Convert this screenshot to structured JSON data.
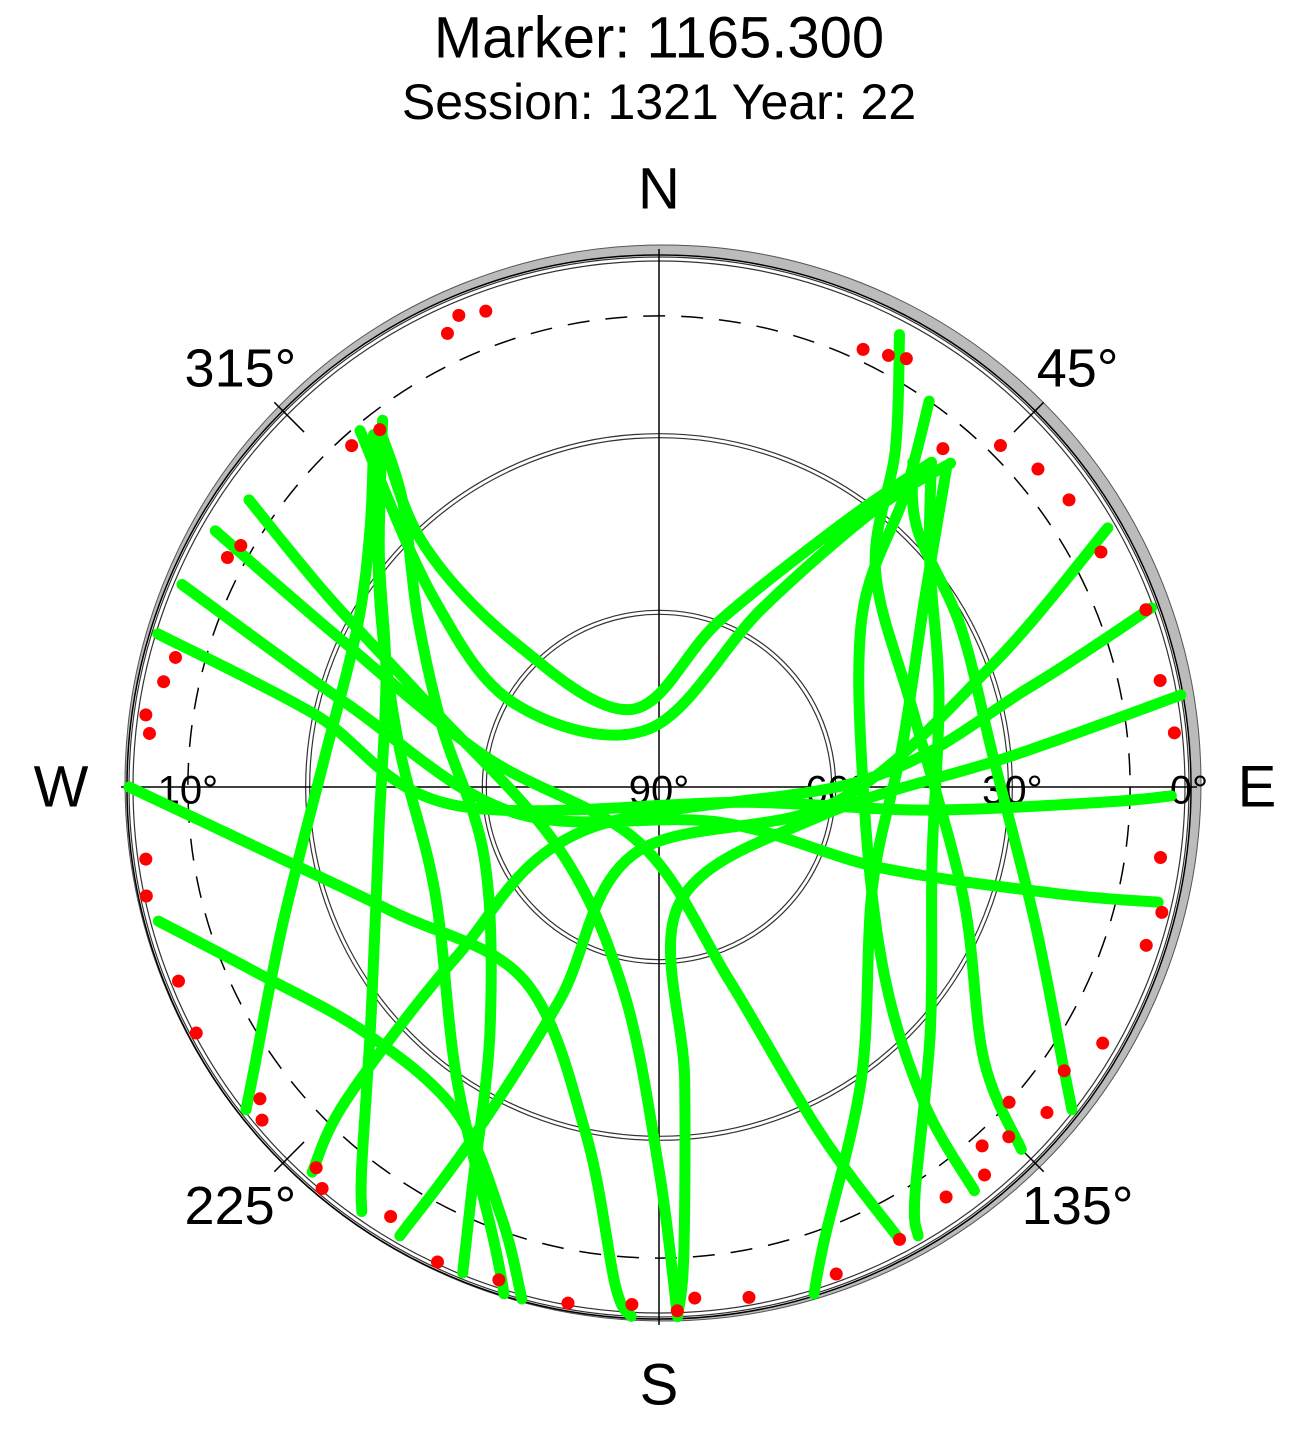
{
  "chart_data": {
    "type": "polar",
    "title": "Marker: 1165.300",
    "subtitle": "Session: 1321 Year: 22",
    "rlim": [
      90,
      0
    ],
    "rticks": [
      {
        "value": 0,
        "label": "0°"
      },
      {
        "value": 30,
        "label": "30°"
      },
      {
        "value": 60,
        "label": "60°"
      },
      {
        "value": 90,
        "label": "90°"
      }
    ],
    "mask": {
      "value": 10,
      "label": "10°"
    },
    "azticks": [
      {
        "value": 0,
        "label": "N"
      },
      {
        "value": 45,
        "label": "45°"
      },
      {
        "value": 90,
        "label": "E"
      },
      {
        "value": 135,
        "label": "135°"
      },
      {
        "value": 180,
        "label": "S"
      },
      {
        "value": 225,
        "label": "225°"
      },
      {
        "value": 270,
        "label": "W"
      },
      {
        "value": 315,
        "label": "315°"
      }
    ],
    "series": [
      {
        "color": "#00ff00",
        "style": "line",
        "az": [
          322,
          305,
          280,
          245,
          215,
          200,
          197,
          null,
          323,
          310,
          292,
          262,
          232,
          218,
          215,
          null,
          321,
          312,
          298,
          275,
          250,
          235,
          232,
          null,
          322,
          316,
          315,
          340,
          20,
          35,
          40,
          null,
          320,
          310,
          300,
          350,
          30,
          38,
          42,
          null,
          300,
          295,
          280,
          200,
          160,
          155,
          152,
          null,
          293,
          285,
          260,
          120,
          110,
          105,
          103,
          null,
          287,
          282,
          265,
          100,
          95,
          92,
          91,
          null,
          305,
          300,
          290,
          240,
          190,
          180,
          178,
          null,
          270,
          262,
          245,
          215,
          192,
          185,
          183,
          null,
          255,
          245,
          230,
          212,
          200,
          195,
          null,
          42,
          55,
          80,
          115,
          145,
          160,
          163,
          null,
          40,
          50,
          72,
          105,
          132,
          148,
          150,
          null,
          38,
          45,
          62,
          85,
          110,
          125,
          128,
          null,
          60,
          70,
          95,
          200,
          205,
          208,
          210,
          null,
          70,
          75,
          88,
          240,
          230,
          225,
          222,
          null,
          80,
          85,
          100,
          170,
          175,
          177,
          178,
          null,
          35,
          40,
          50,
          95,
          130,
          140,
          142,
          null,
          28,
          35,
          45,
          75,
          110,
          130,
          135,
          null,
          322,
          318,
          305,
          285,
          248,
          215,
          205,
          202
        ],
        "el": [
          13,
          32,
          45,
          48,
          30,
          8,
          0,
          null,
          12,
          28,
          40,
          42,
          28,
          8,
          2,
          null,
          13,
          24,
          32,
          33,
          22,
          6,
          1,
          null,
          13,
          32,
          55,
          76,
          60,
          35,
          18,
          null,
          11,
          40,
          62,
          80,
          55,
          30,
          16,
          null,
          3,
          30,
          60,
          80,
          55,
          25,
          3,
          null,
          2,
          35,
          65,
          78,
          50,
          20,
          3,
          null,
          1,
          30,
          55,
          75,
          45,
          15,
          3,
          null,
          5,
          25,
          48,
          70,
          55,
          25,
          0,
          null,
          0,
          20,
          40,
          50,
          30,
          5,
          0,
          null,
          2,
          15,
          25,
          25,
          12,
          0,
          null,
          17,
          35,
          48,
          50,
          30,
          8,
          0,
          null,
          18,
          30,
          40,
          42,
          28,
          8,
          2,
          null,
          20,
          28,
          32,
          33,
          22,
          6,
          1,
          null,
          2,
          30,
          60,
          78,
          50,
          22,
          2,
          null,
          1,
          25,
          55,
          75,
          45,
          15,
          2,
          null,
          0,
          30,
          62,
          70,
          40,
          10,
          0,
          null,
          10,
          25,
          45,
          55,
          40,
          20,
          3,
          null,
          3,
          20,
          38,
          45,
          35,
          18,
          3,
          null,
          13,
          25,
          40,
          52,
          58,
          40,
          15,
          1
        ]
      },
      {
        "color": "#ff0000",
        "style": "points",
        "az": [
          340,
          337,
          335,
          322,
          318,
          300,
          298,
          285,
          282,
          278,
          276,
          262,
          258,
          248,
          242,
          232,
          230,
          222,
          220,
          212,
          205,
          198,
          190,
          183,
          178,
          176,
          170,
          160,
          152,
          145,
          140,
          138,
          135,
          132,
          130,
          125,
          120,
          108,
          104,
          98,
          84,
          78,
          70,
          62,
          55,
          50,
          45,
          40,
          30,
          28,
          25
        ],
        "el": [
          4,
          3,
          5,
          13,
          12,
          8,
          7,
          5,
          4,
          2,
          3,
          2,
          1,
          2,
          1,
          4,
          2,
          3,
          1,
          4,
          1,
          2,
          1,
          2,
          1,
          3,
          2,
          2,
          3,
          5,
          4,
          8,
          6,
          10,
          4,
          6,
          3,
          3,
          2,
          4,
          2,
          3,
          2,
          5,
          5,
          6,
          8,
          15,
          6,
          7,
          8
        ]
      }
    ]
  }
}
